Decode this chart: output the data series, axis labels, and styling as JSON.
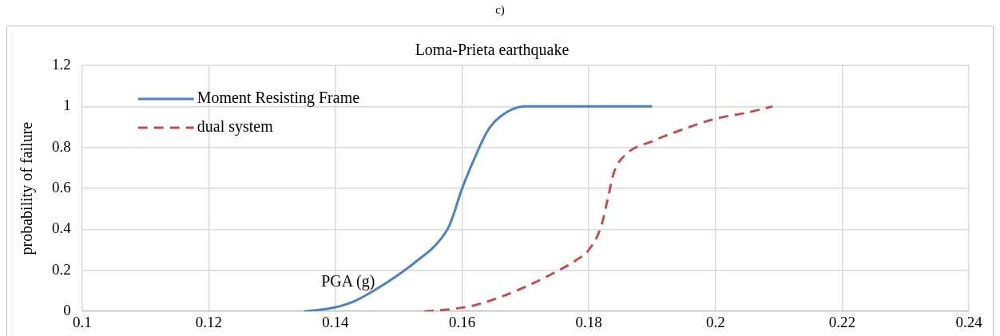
{
  "chart_data": {
    "type": "line",
    "title": "Loma-Prieta earthquake",
    "xlabel": "PGA (g)",
    "ylabel": "probability of failure",
    "annotations": [
      "c)"
    ],
    "series": [
      {
        "name": "Moment Resisting Frame",
        "color": "#4f81bd",
        "line_style": "solid",
        "x": [
          0.135,
          0.138,
          0.14,
          0.143,
          0.146,
          0.15,
          0.153,
          0.156,
          0.158,
          0.16,
          0.162,
          0.164,
          0.166,
          0.17,
          0.19
        ],
        "values": [
          0,
          0.01,
          0.02,
          0.05,
          0.1,
          0.18,
          0.25,
          0.33,
          0.42,
          0.6,
          0.75,
          0.88,
          0.95,
          1,
          1
        ]
      },
      {
        "name": "dual system",
        "color": "#c0504d",
        "line_style": "dashed",
        "x": [
          0.154,
          0.158,
          0.162,
          0.166,
          0.17,
          0.174,
          0.178,
          0.18,
          0.182,
          0.183,
          0.184,
          0.186,
          0.19,
          0.195,
          0.2,
          0.205,
          0.209
        ],
        "values": [
          0,
          0.01,
          0.03,
          0.07,
          0.12,
          0.18,
          0.25,
          0.3,
          0.42,
          0.55,
          0.68,
          0.77,
          0.83,
          0.89,
          0.94,
          0.97,
          1
        ]
      }
    ],
    "xlim": [
      0.1,
      0.24
    ],
    "xticks": [
      0.1,
      0.12,
      0.14,
      0.16,
      0.18,
      0.2,
      0.22,
      0.24
    ],
    "ylim": [
      0,
      1.2
    ],
    "yticks": [
      0,
      0.2,
      0.4,
      0.6,
      0.8,
      1,
      1.2
    ],
    "grid": true,
    "legend": "top left",
    "marker": "none"
  }
}
